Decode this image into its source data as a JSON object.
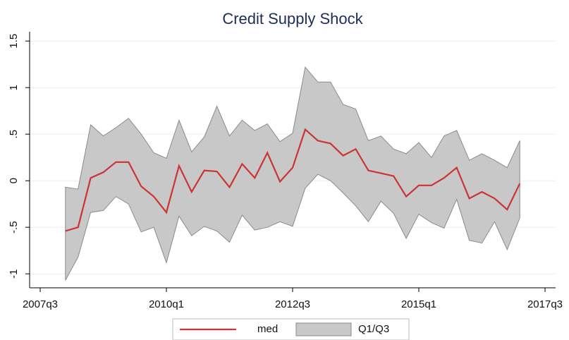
{
  "chart_data": {
    "type": "line",
    "title": "Credit Supply Shock",
    "x": [
      "2008q1",
      "2008q2",
      "2008q3",
      "2008q4",
      "2009q1",
      "2009q2",
      "2009q3",
      "2009q4",
      "2010q1",
      "2010q2",
      "2010q3",
      "2010q4",
      "2011q1",
      "2011q2",
      "2011q3",
      "2011q4",
      "2012q1",
      "2012q2",
      "2012q3",
      "2012q4",
      "2013q1",
      "2013q2",
      "2013q3",
      "2013q4",
      "2014q1",
      "2014q2",
      "2014q3",
      "2014q4",
      "2015q1",
      "2015q2",
      "2015q3",
      "2015q4",
      "2016q1",
      "2016q2",
      "2016q3",
      "2016q4",
      "2017q1"
    ],
    "series": [
      {
        "name": "med",
        "color": "#cc3333",
        "values": [
          -0.54,
          -0.5,
          0.03,
          0.09,
          0.2,
          0.2,
          -0.06,
          -0.17,
          -0.34,
          0.16,
          -0.12,
          0.11,
          0.1,
          -0.07,
          0.18,
          0.03,
          0.3,
          -0.01,
          0.14,
          0.55,
          0.43,
          0.4,
          0.27,
          0.34,
          0.11,
          0.08,
          0.05,
          -0.17,
          -0.05,
          -0.05,
          0.03,
          0.14,
          -0.19,
          -0.12,
          -0.19,
          -0.31,
          -0.03
        ]
      },
      {
        "name": "Q1/Q3",
        "color": "#c8c8c8",
        "lower": [
          -1.07,
          -0.82,
          -0.34,
          -0.32,
          -0.17,
          -0.25,
          -0.55,
          -0.5,
          -0.88,
          -0.38,
          -0.59,
          -0.49,
          -0.54,
          -0.66,
          -0.37,
          -0.53,
          -0.5,
          -0.44,
          -0.49,
          -0.08,
          0.07,
          0.0,
          -0.13,
          -0.27,
          -0.44,
          -0.22,
          -0.35,
          -0.62,
          -0.36,
          -0.45,
          -0.51,
          -0.2,
          -0.64,
          -0.67,
          -0.44,
          -0.74,
          -0.4
        ],
        "upper": [
          -0.07,
          -0.09,
          0.6,
          0.48,
          0.57,
          0.67,
          0.5,
          0.3,
          0.24,
          0.65,
          0.31,
          0.47,
          0.8,
          0.48,
          0.65,
          0.54,
          0.61,
          0.42,
          0.51,
          1.22,
          1.06,
          1.06,
          0.82,
          0.77,
          0.43,
          0.48,
          0.34,
          0.29,
          0.41,
          0.25,
          0.48,
          0.54,
          0.22,
          0.29,
          0.22,
          0.14,
          0.43
        ]
      }
    ],
    "xlim": [
      "2007q3",
      "2017q3"
    ],
    "xticks": [
      "2007q3",
      "2010q1",
      "2012q3",
      "2015q1",
      "2017q3"
    ],
    "ylim": [
      -1.15,
      1.6
    ],
    "yticks": [
      -1,
      {
        "value": -0.5,
        "label": "-.5"
      },
      0,
      {
        "value": 0.5,
        "label": ".5"
      },
      1,
      1.5
    ],
    "grid": true
  }
}
